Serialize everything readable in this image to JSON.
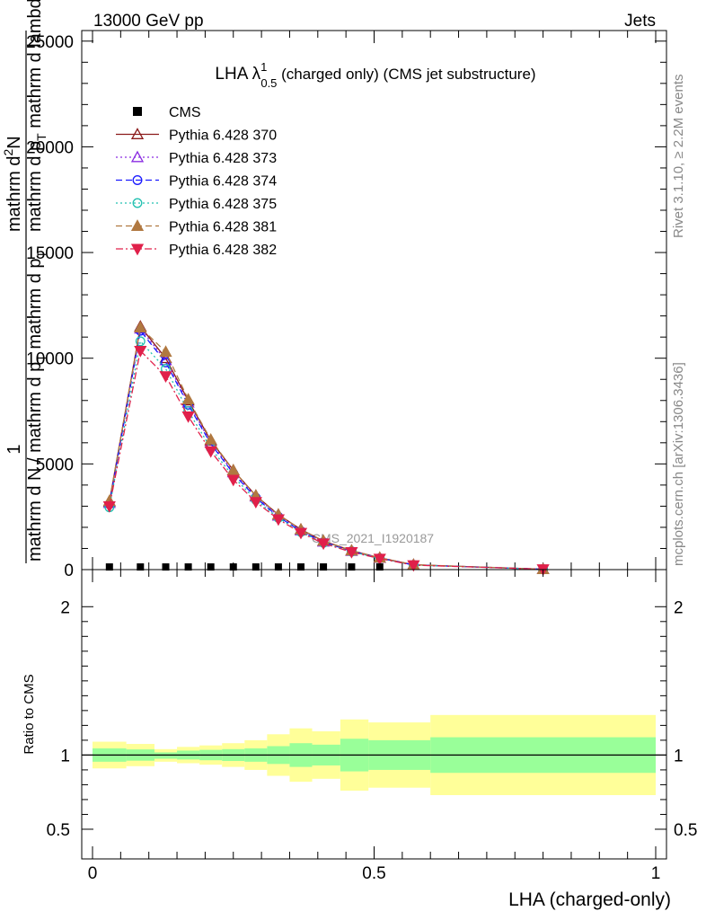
{
  "header": {
    "left": "13000 GeV pp",
    "right": "Jets"
  },
  "side_text": {
    "rivet": "Rivet 3.1.10, ≥ 2.2M events",
    "mcplots": "mcplots.cern.ch [arXiv:1306.3436]"
  },
  "watermark": "CMS_2021_I1920187",
  "chart_data": [
    {
      "type": "line",
      "title": {
        "main": "LHA λ",
        "sup": "1",
        "sub": "0.5",
        "rest": " (charged only) (CMS jet substructure)"
      },
      "ylabel": {
        "numerator": "1",
        "line1": "mathrm d N / mathrm d p",
        "line1_sub": "T",
        "line1_rest": " mathrm d p",
        "line1_sub2": "T",
        "frac_numerator": "mathrm d",
        "frac_numerator_sup": "2",
        "frac_numerator_rest": "N",
        "frac_denominator": "mathrm d p",
        "frac_denominator_sub": "T",
        "frac_denominator_rest": " mathrm d lambda"
      },
      "xlim": [
        0,
        1
      ],
      "ylim": [
        0,
        25500
      ],
      "yticks": [
        0,
        5000,
        10000,
        15000,
        20000,
        25000
      ],
      "ytick_labels": [
        "0",
        "5000",
        "10000",
        "15000",
        "20000",
        "25000"
      ],
      "x": [
        0.03,
        0.085,
        0.13,
        0.17,
        0.21,
        0.25,
        0.29,
        0.33,
        0.37,
        0.41,
        0.46,
        0.51,
        0.57,
        0.8
      ],
      "cms": {
        "name": "CMS",
        "x": [
          0.03,
          0.085,
          0.13,
          0.17,
          0.21,
          0.25,
          0.29,
          0.33,
          0.37,
          0.41,
          0.46,
          0.51
        ],
        "values": [
          40,
          40,
          40,
          40,
          40,
          40,
          40,
          40,
          40,
          40,
          40,
          40
        ]
      },
      "series": [
        {
          "name": "Pythia 6.428 370",
          "color": "#8b1a1a",
          "marker": "triangle-up-open",
          "dash": "solid",
          "values": [
            3200,
            11500,
            10000,
            8000,
            6100,
            4700,
            3500,
            2600,
            1900,
            1350,
            900,
            560,
            230,
            20
          ]
        },
        {
          "name": "Pythia 6.428 373",
          "color": "#8a2be2",
          "marker": "triangle-up-open",
          "dash": "dotted",
          "values": [
            3150,
            11400,
            9900,
            7900,
            6000,
            4600,
            3450,
            2550,
            1850,
            1320,
            880,
            550,
            225,
            20
          ]
        },
        {
          "name": "Pythia 6.428 374",
          "color": "#1a1aff",
          "marker": "circle-open",
          "dash": "dashed",
          "values": [
            3100,
            11300,
            9800,
            7800,
            5950,
            4550,
            3400,
            2500,
            1820,
            1300,
            870,
            540,
            220,
            20
          ]
        },
        {
          "name": "Pythia 6.428 375",
          "color": "#20c0b0",
          "marker": "circle-open",
          "dash": "dotted",
          "values": [
            2950,
            10800,
            9500,
            7500,
            5750,
            4400,
            3300,
            2450,
            1780,
            1270,
            850,
            530,
            215,
            20
          ]
        },
        {
          "name": "Pythia 6.428 381",
          "color": "#b07840",
          "marker": "triangle-up-filled",
          "dash": "dashed",
          "values": [
            3250,
            11450,
            10300,
            8050,
            6150,
            4700,
            3500,
            2600,
            1900,
            1360,
            900,
            560,
            230,
            20
          ]
        },
        {
          "name": "Pythia 6.428 382",
          "color": "#e0204a",
          "marker": "triangle-down-filled",
          "dash": "dashdot",
          "values": [
            3000,
            10350,
            9150,
            7250,
            5600,
            4250,
            3200,
            2380,
            1740,
            1240,
            830,
            520,
            210,
            20
          ]
        }
      ]
    },
    {
      "type": "area",
      "ylabel": "Ratio to CMS",
      "xlabel": "LHA (charged-only)",
      "xlim": [
        0,
        1
      ],
      "ylim": [
        0.3,
        2.25
      ],
      "yticks": [
        0.5,
        1,
        2
      ],
      "ytick_labels": [
        "0.5",
        "1",
        "2"
      ],
      "xticks": [
        0,
        0.5,
        1
      ],
      "xtick_labels": [
        "0",
        "0.5",
        "1"
      ],
      "bins": [
        {
          "x0": 0.0,
          "x1": 0.06,
          "outer": [
            0.91,
            1.09
          ],
          "inner": [
            0.955,
            1.045
          ]
        },
        {
          "x0": 0.06,
          "x1": 0.11,
          "outer": [
            0.925,
            1.075
          ],
          "inner": [
            0.962,
            1.038
          ]
        },
        {
          "x0": 0.11,
          "x1": 0.15,
          "outer": [
            0.955,
            1.04
          ],
          "inner": [
            0.975,
            1.018
          ]
        },
        {
          "x0": 0.15,
          "x1": 0.19,
          "outer": [
            0.945,
            1.055
          ],
          "inner": [
            0.97,
            1.03
          ]
        },
        {
          "x0": 0.19,
          "x1": 0.23,
          "outer": [
            0.935,
            1.065
          ],
          "inner": [
            0.965,
            1.035
          ]
        },
        {
          "x0": 0.23,
          "x1": 0.27,
          "outer": [
            0.92,
            1.08
          ],
          "inner": [
            0.96,
            1.04
          ]
        },
        {
          "x0": 0.27,
          "x1": 0.31,
          "outer": [
            0.9,
            1.1
          ],
          "inner": [
            0.955,
            1.045
          ]
        },
        {
          "x0": 0.31,
          "x1": 0.35,
          "outer": [
            0.86,
            1.14
          ],
          "inner": [
            0.94,
            1.06
          ]
        },
        {
          "x0": 0.35,
          "x1": 0.39,
          "outer": [
            0.82,
            1.18
          ],
          "inner": [
            0.92,
            1.08
          ]
        },
        {
          "x0": 0.39,
          "x1": 0.44,
          "outer": [
            0.84,
            1.16
          ],
          "inner": [
            0.93,
            1.07
          ]
        },
        {
          "x0": 0.44,
          "x1": 0.49,
          "outer": [
            0.76,
            1.24
          ],
          "inner": [
            0.89,
            1.11
          ]
        },
        {
          "x0": 0.49,
          "x1": 0.6,
          "outer": [
            0.78,
            1.22
          ],
          "inner": [
            0.9,
            1.1
          ]
        },
        {
          "x0": 0.6,
          "x1": 1.0,
          "outer": [
            0.73,
            1.27
          ],
          "inner": [
            0.88,
            1.12
          ]
        }
      ],
      "colors": {
        "outer": "#ffff99",
        "inner": "#99ff99",
        "line": "#000000"
      }
    }
  ]
}
